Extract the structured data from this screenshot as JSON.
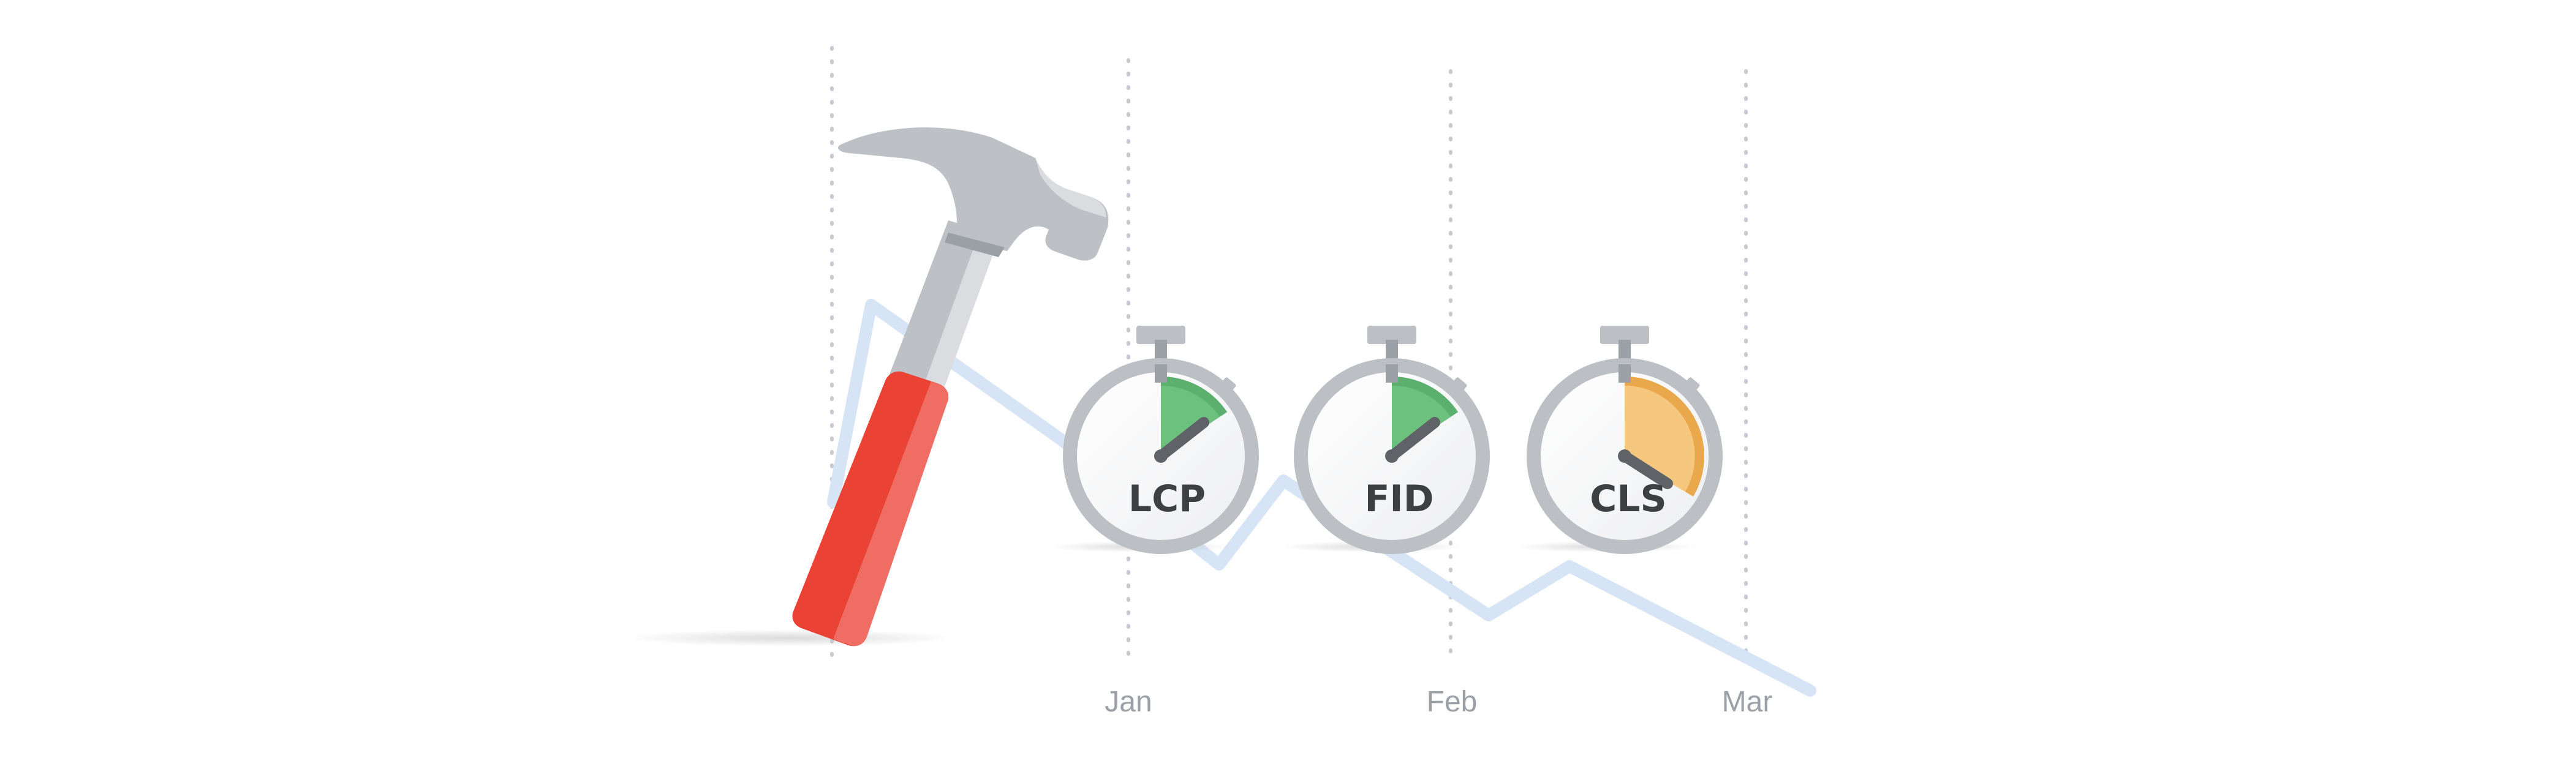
{
  "months": [
    "Jan",
    "Feb",
    "Mar"
  ],
  "stopwatches": [
    {
      "label": "LCP",
      "status": "good",
      "fill_color": "#6cc17d",
      "fill_dark": "#5bb06d"
    },
    {
      "label": "FID",
      "status": "good",
      "fill_color": "#6cc17d",
      "fill_dark": "#5bb06d"
    },
    {
      "label": "CLS",
      "status": "needs-improvement",
      "fill_color": "#f6c77e",
      "fill_dark": "#e9a84b"
    }
  ],
  "colors": {
    "trend_line": "#d6e4f5",
    "gridline": "#c6cad0",
    "stopwatch_body": "#bcc0c5",
    "stopwatch_face": "#ffffff",
    "hammer_head": "#bdc1c6",
    "hammer_handle": "#ea4335",
    "hammer_handle_highlight": "#f06d63"
  },
  "icons": [
    "hammer-icon",
    "stopwatch-icon"
  ]
}
